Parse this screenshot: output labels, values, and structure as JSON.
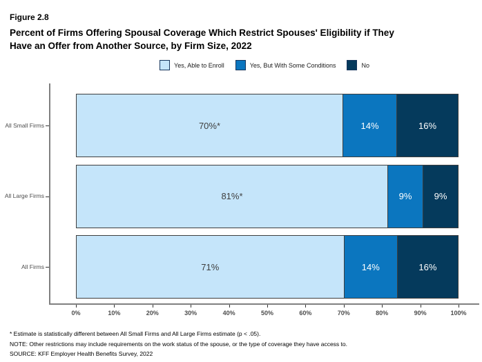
{
  "figure_label": "Figure 2.8",
  "title_line1": "Percent of Firms Offering Spousal Coverage Which Restrict Spouses' Eligibility if They",
  "title_line2": "Have an Offer from Another Source, by Firm Size, 2022",
  "colors": {
    "yes_able": "#C5E5FA",
    "yes_conditions": "#0B76BF",
    "no": "#053A5C",
    "segment_border": "#3D3D3D",
    "axis_line": "#7F7F7F",
    "dark_label_text": "#3D3D3D",
    "light_label_text": "#FFFFFF"
  },
  "chart_data": {
    "type": "bar",
    "orientation": "horizontal",
    "stacked": true,
    "title": "Percent of Firms Offering Spousal Coverage Which Restrict Spouses' Eligibility if They Have an Offer from Another Source, by Firm Size, 2022",
    "categories": [
      "All Small Firms",
      "All Large Firms",
      "All Firms"
    ],
    "series": [
      {
        "name": "Yes, Able to Enroll",
        "color": "#C5E5FA",
        "text_color": "#3D3D3D",
        "values": [
          70,
          81,
          71
        ],
        "labels": [
          "70%*",
          "81%*",
          "71%"
        ]
      },
      {
        "name": "Yes, But With Some Conditions",
        "color": "#0B76BF",
        "text_color": "#FFFFFF",
        "values": [
          14,
          9,
          14
        ],
        "labels": [
          "14%",
          "9%",
          "14%"
        ]
      },
      {
        "name": "No",
        "color": "#053A5C",
        "text_color": "#FFFFFF",
        "values": [
          16,
          9,
          16
        ],
        "labels": [
          "16%",
          "9%",
          "16%"
        ]
      }
    ],
    "x_axis": {
      "min": 0,
      "max": 100,
      "tick_labels": [
        "0%",
        "10%",
        "20%",
        "30%",
        "40%",
        "50%",
        "60%",
        "70%",
        "80%",
        "90%",
        "100%"
      ]
    },
    "grid": false,
    "legend_position": "top-center"
  },
  "legend": {
    "items": [
      {
        "label": "Yes, Able to Enroll",
        "color": "#C5E5FA"
      },
      {
        "label": "Yes, But With Some Conditions",
        "color": "#0B76BF"
      },
      {
        "label": "No",
        "color": "#053A5C"
      }
    ]
  },
  "footnotes": [
    "* Estimate is statistically different between All Small Firms and All Large Firms estimate (p < .05).",
    "NOTE: Other restrictions may include requirements on the work status of the spouse, or the type of coverage they have access to.",
    "SOURCE: KFF Employer Health Benefits Survey, 2022"
  ]
}
